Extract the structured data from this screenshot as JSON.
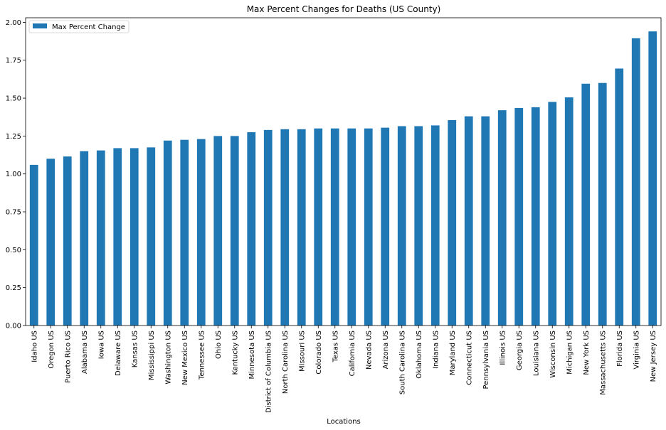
{
  "chart_data": {
    "type": "bar",
    "title": "Max Percent Changes for Deaths (US County)",
    "xlabel": "Locations",
    "ylabel": "",
    "ylim": [
      0,
      2.0
    ],
    "yticks": [
      "0.00",
      "0.25",
      "0.50",
      "0.75",
      "1.00",
      "1.25",
      "1.50",
      "1.75",
      "2.00"
    ],
    "ytick_values": [
      0,
      0.25,
      0.5,
      0.75,
      1.0,
      1.25,
      1.5,
      1.75,
      2.0
    ],
    "legend_position": "top-left",
    "grid": false,
    "color": "#1f77b4",
    "categories": [
      "Idaho US",
      "Oregon US",
      "Puerto Rico US",
      "Alabama US",
      "Iowa US",
      "Delaware US",
      "Kansas US",
      "Mississippi US",
      "Washington US",
      "New Mexico US",
      "Tennessee US",
      "Ohio US",
      "Kentucky US",
      "Minnesota US",
      "District of Columbia US",
      "North Carolina US",
      "Missouri US",
      "Colorado US",
      "Texas US",
      "California US",
      "Nevada US",
      "Arizona US",
      "South Carolina US",
      "Oklahoma US",
      "Indiana US",
      "Maryland US",
      "Connecticut US",
      "Pennsylvania US",
      "Illinois US",
      "Georgia US",
      "Louisiana US",
      "Wisconsin US",
      "Michigan US",
      "New York US",
      "Massachusetts US",
      "Florida US",
      "Virginia US",
      "New Jersey US"
    ],
    "series": [
      {
        "name": "Max Percent Change",
        "values": [
          1.06,
          1.1,
          1.115,
          1.15,
          1.155,
          1.17,
          1.17,
          1.175,
          1.22,
          1.225,
          1.23,
          1.25,
          1.25,
          1.275,
          1.29,
          1.295,
          1.295,
          1.3,
          1.3,
          1.3,
          1.3,
          1.305,
          1.315,
          1.315,
          1.32,
          1.355,
          1.38,
          1.38,
          1.42,
          1.435,
          1.44,
          1.475,
          1.505,
          1.595,
          1.6,
          1.695,
          1.895,
          1.94
        ]
      }
    ]
  }
}
